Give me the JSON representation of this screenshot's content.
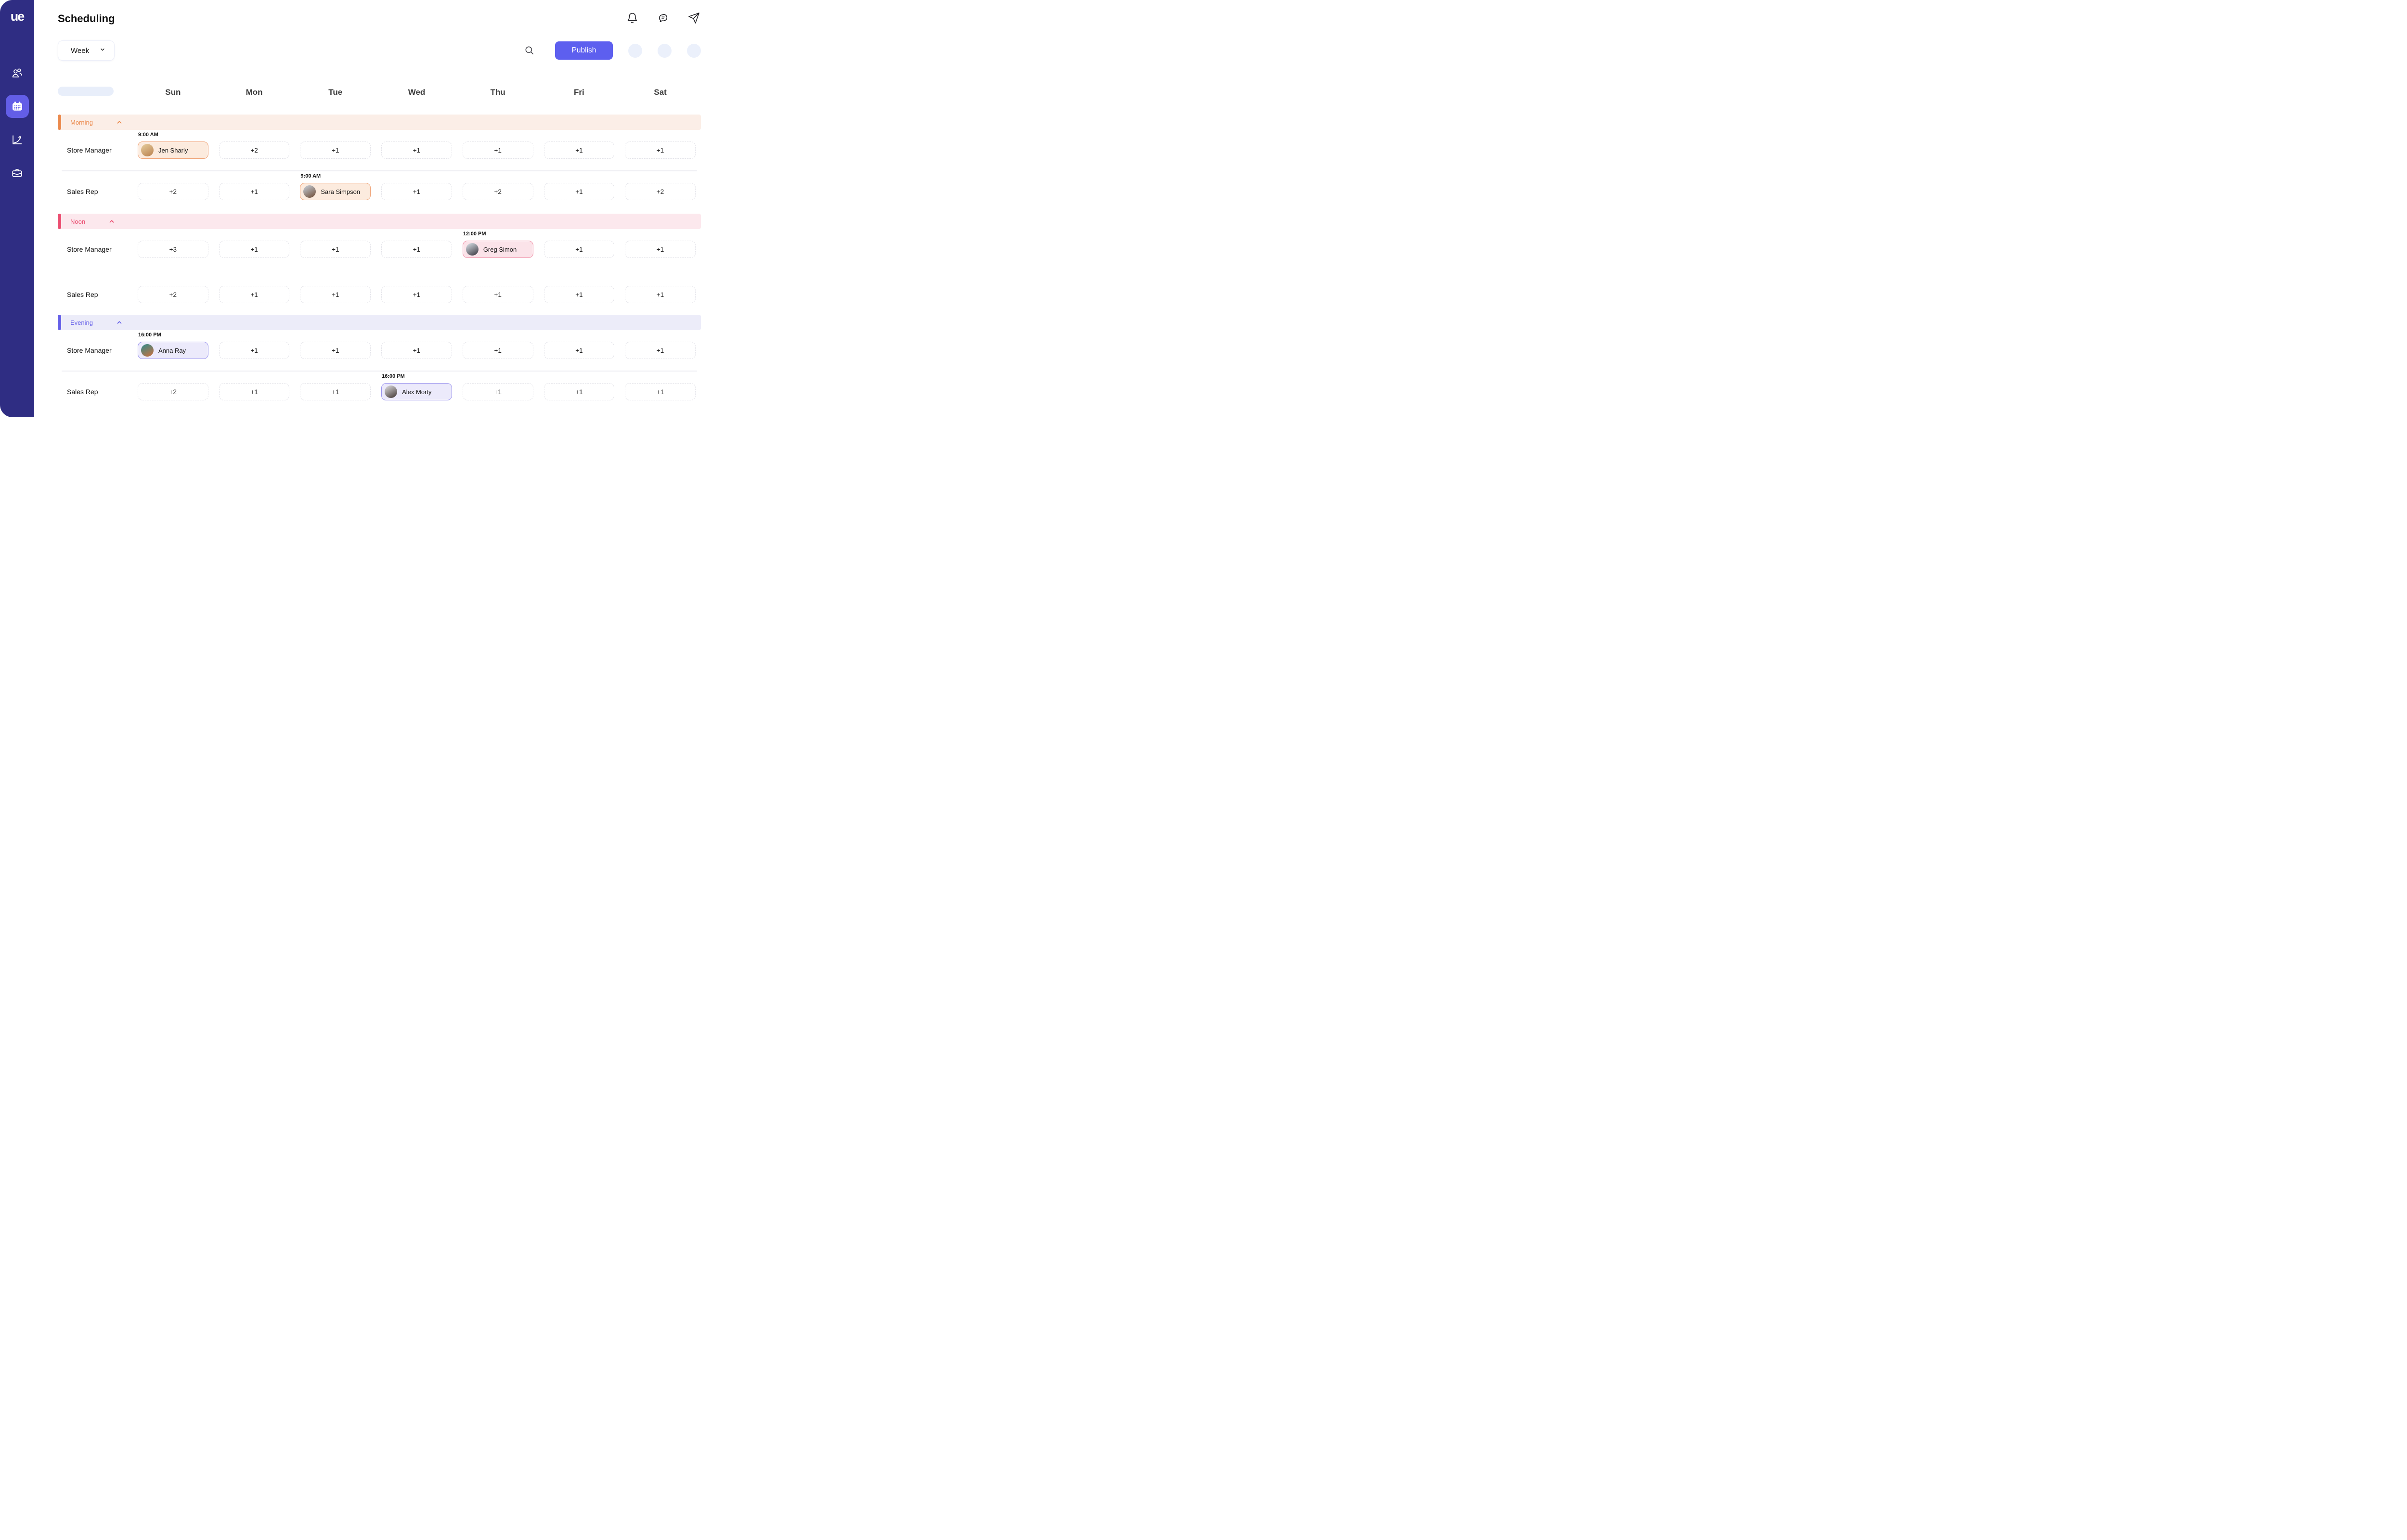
{
  "brand": {
    "logo_text": "ue"
  },
  "theme": {
    "sidebar_bg": "#2F2D83",
    "active_tile_bg": "#635EE7",
    "publish_bg": "#5D5FEF",
    "avatar_placeholder_bg": "#EBF0FB",
    "skeleton_bg": "#E8EEFA",
    "divider": "#EDEDF2"
  },
  "sidebar": {
    "items": [
      {
        "id": "team",
        "icon": "users-icon",
        "active": false
      },
      {
        "id": "scheduling",
        "icon": "calendar-icon",
        "active": true
      },
      {
        "id": "analytics",
        "icon": "trend-icon",
        "active": false
      },
      {
        "id": "jobs",
        "icon": "briefcase-icon",
        "active": false
      }
    ]
  },
  "header": {
    "title": "Scheduling",
    "icons": [
      "bell-icon",
      "chat-icon",
      "send-icon"
    ]
  },
  "toolbar": {
    "view_selector_value": "Week",
    "publish_label": "Publish",
    "avatar_placeholder_count": 3
  },
  "schedule": {
    "days": [
      "Sun",
      "Mon",
      "Tue",
      "Wed",
      "Thu",
      "Fri",
      "Sat"
    ],
    "sections": [
      {
        "label": "Morning",
        "accent": "#EB8A4D",
        "band_bg": "#FBEEE7",
        "chip_bg": "#FCEBDE",
        "chip_border": "#EFA377",
        "rows": [
          {
            "role": "Store Manager",
            "divider_after": true,
            "cells": [
              {
                "type": "person",
                "name": "Jen Sharly",
                "time": "9:00 AM",
                "avatar": [
                  "#e7cf9f",
                  "#b9804e"
                ]
              },
              {
                "type": "slot",
                "label": "+2"
              },
              {
                "type": "slot",
                "label": "+1"
              },
              {
                "type": "slot",
                "label": "+1"
              },
              {
                "type": "slot",
                "label": "+1"
              },
              {
                "type": "slot",
                "label": "+1"
              },
              {
                "type": "slot",
                "label": "+1"
              }
            ]
          },
          {
            "role": "Sales Rep",
            "divider_after": false,
            "cells": [
              {
                "type": "slot",
                "label": "+2"
              },
              {
                "type": "slot",
                "label": "+1"
              },
              {
                "type": "person",
                "name": "Sara Simpson",
                "time": "9:00 AM",
                "avatar": [
                  "#c9d3de",
                  "#6e4a32"
                ]
              },
              {
                "type": "slot",
                "label": "+1"
              },
              {
                "type": "slot",
                "label": "+2"
              },
              {
                "type": "slot",
                "label": "+1"
              },
              {
                "type": "slot",
                "label": "+2"
              }
            ]
          }
        ]
      },
      {
        "label": "Noon",
        "accent": "#EB4E71",
        "band_bg": "#FCE8ED",
        "chip_bg": "#FBE3E9",
        "chip_border": "#F194AB",
        "rows": [
          {
            "role": "Store Manager",
            "divider_after": false,
            "cells": [
              {
                "type": "slot",
                "label": "+3"
              },
              {
                "type": "slot",
                "label": "+1"
              },
              {
                "type": "slot",
                "label": "+1"
              },
              {
                "type": "slot",
                "label": "+1"
              },
              {
                "type": "person",
                "name": "Greg Simon",
                "time": "12:00 PM",
                "avatar": [
                  "#dde5ec",
                  "#37343c"
                ]
              },
              {
                "type": "slot",
                "label": "+1"
              },
              {
                "type": "slot",
                "label": "+1"
              }
            ]
          },
          {
            "role": "Sales Rep",
            "divider_after": false,
            "extra_gap": true,
            "cells": [
              {
                "type": "slot",
                "label": "+2"
              },
              {
                "type": "slot",
                "label": "+1"
              },
              {
                "type": "slot",
                "label": "+1"
              },
              {
                "type": "slot",
                "label": "+1"
              },
              {
                "type": "slot",
                "label": "+1"
              },
              {
                "type": "slot",
                "label": "+1"
              },
              {
                "type": "slot",
                "label": "+1"
              }
            ]
          }
        ]
      },
      {
        "label": "Evening",
        "accent": "#6560E8",
        "band_bg": "#ECECF9",
        "chip_bg": "#ECEAFB",
        "chip_border": "#9B95EE",
        "rows": [
          {
            "role": "Store Manager",
            "divider_after": true,
            "cells": [
              {
                "type": "person",
                "name": "Anna Ray",
                "time": "16:00 PM",
                "avatar": [
                  "#2f8c8c",
                  "#cf6f3d"
                ]
              },
              {
                "type": "slot",
                "label": "+1"
              },
              {
                "type": "slot",
                "label": "+1"
              },
              {
                "type": "slot",
                "label": "+1"
              },
              {
                "type": "slot",
                "label": "+1"
              },
              {
                "type": "slot",
                "label": "+1"
              },
              {
                "type": "slot",
                "label": "+1"
              }
            ]
          },
          {
            "role": "Sales Rep",
            "divider_after": false,
            "cells": [
              {
                "type": "slot",
                "label": "+2"
              },
              {
                "type": "slot",
                "label": "+1"
              },
              {
                "type": "slot",
                "label": "+1"
              },
              {
                "type": "person",
                "name": "Alex Morty",
                "time": "16:00 PM",
                "avatar": [
                  "#e3e3e6",
                  "#3f3430"
                ]
              },
              {
                "type": "slot",
                "label": "+1"
              },
              {
                "type": "slot",
                "label": "+1"
              },
              {
                "type": "slot",
                "label": "+1"
              }
            ]
          }
        ]
      }
    ]
  }
}
